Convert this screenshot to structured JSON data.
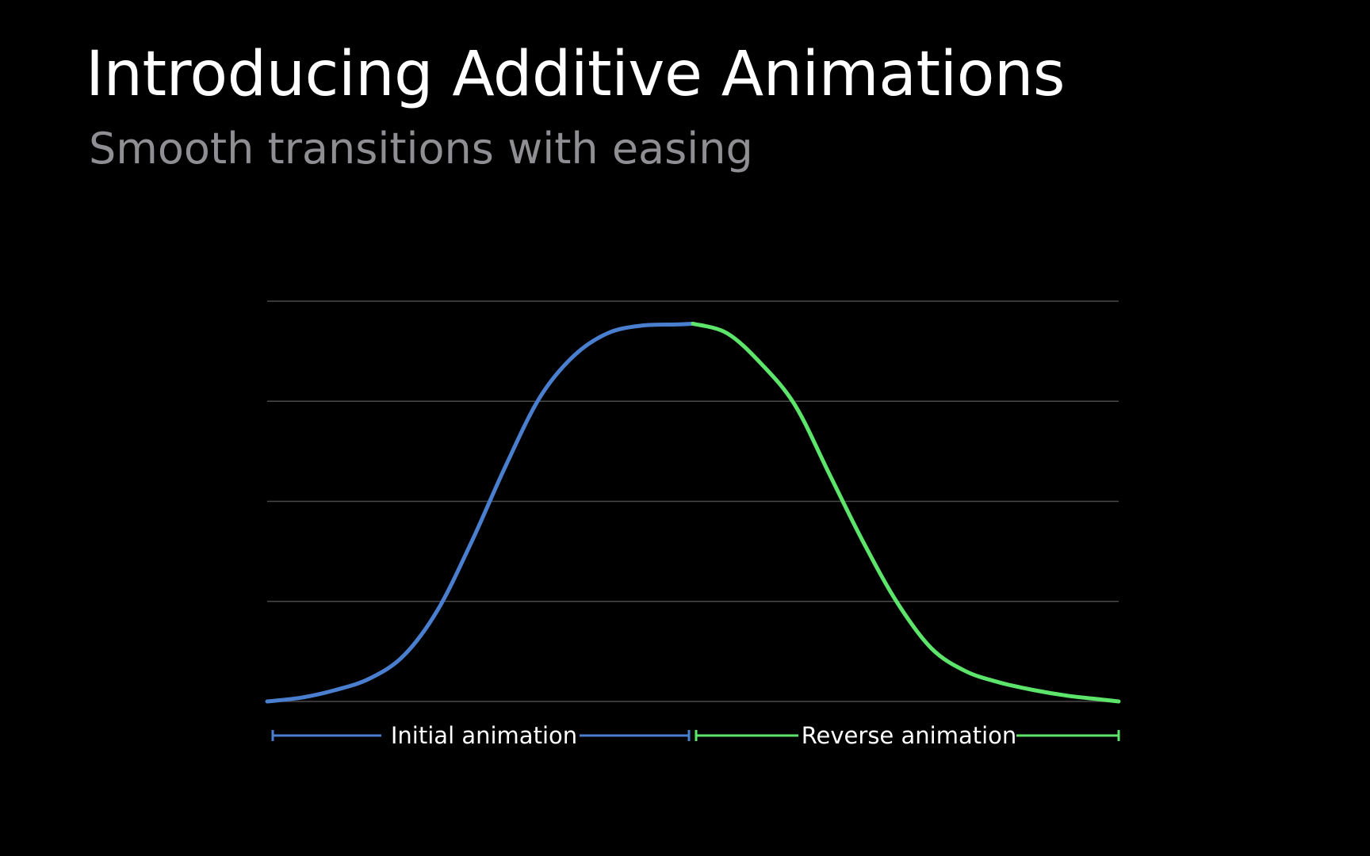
{
  "slide": {
    "title": "Introducing Additive Animations",
    "subtitle": "Smooth transitions with easing"
  },
  "colors": {
    "background": "#000000",
    "gridline": "#4a4a4a",
    "initial": "#4a7fd0",
    "reverse": "#5de46a",
    "subtitle": "#8e8e93"
  },
  "chart_data": {
    "type": "line",
    "grid": true,
    "gridline_count": 5,
    "xlim": [
      0,
      1
    ],
    "ylim": [
      0,
      1
    ],
    "series": [
      {
        "name": "Initial animation",
        "color": "#4a7fd0",
        "x": [
          0,
          0.04,
          0.08,
          0.12,
          0.16,
          0.2,
          0.24,
          0.28,
          0.32,
          0.36,
          0.4,
          0.44,
          0.48,
          0.5
        ],
        "y": [
          0,
          0.01,
          0.03,
          0.06,
          0.12,
          0.24,
          0.42,
          0.62,
          0.8,
          0.91,
          0.97,
          0.99,
          0.993,
          0.995
        ]
      },
      {
        "name": "Reverse animation",
        "color": "#5de46a",
        "x": [
          0.5,
          0.54,
          0.58,
          0.62,
          0.66,
          0.7,
          0.74,
          0.78,
          0.82,
          0.86,
          0.9,
          0.94,
          0.98,
          1
        ],
        "y": [
          0.995,
          0.97,
          0.89,
          0.78,
          0.6,
          0.42,
          0.26,
          0.14,
          0.08,
          0.05,
          0.03,
          0.015,
          0.005,
          0
        ]
      }
    ],
    "legend": {
      "initial_label": "Initial animation",
      "reverse_label": "Reverse animation"
    }
  }
}
